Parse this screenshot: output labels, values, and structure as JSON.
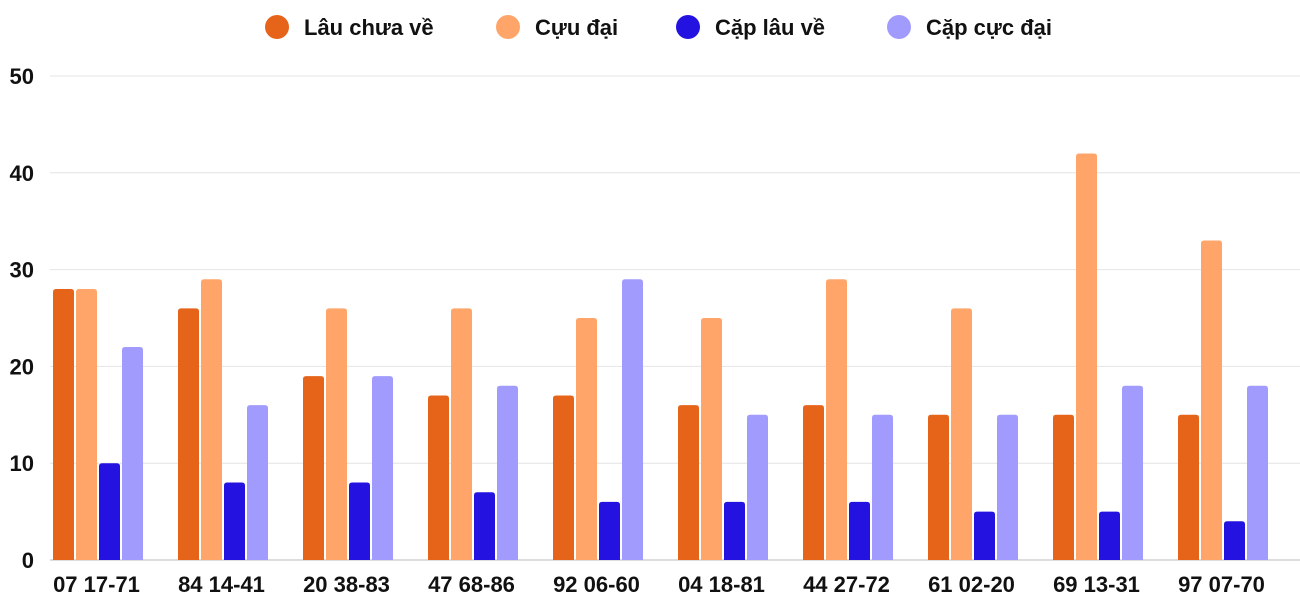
{
  "chart_data": {
    "type": "bar",
    "title": "",
    "xlabel": "",
    "ylabel": "",
    "ylim": [
      0,
      50
    ],
    "yticks": [
      0,
      10,
      20,
      30,
      40,
      50
    ],
    "grid": true,
    "legend_position": "top",
    "categories": [
      "07 17-71",
      "84 14-41",
      "20 38-83",
      "47 68-86",
      "92 06-60",
      "04 18-81",
      "44 27-72",
      "61 02-20",
      "69 13-31",
      "97 07-70"
    ],
    "series": [
      {
        "name": "Lâu chưa về",
        "color": "#E5641A",
        "values": [
          28,
          26,
          19,
          17,
          17,
          16,
          16,
          15,
          15,
          15
        ]
      },
      {
        "name": "Cựu đại",
        "color": "#FFA56A",
        "values": [
          28,
          29,
          26,
          26,
          25,
          25,
          29,
          26,
          42,
          33
        ]
      },
      {
        "name": "Cặp lâu về",
        "color": "#2412E0",
        "values": [
          10,
          8,
          8,
          7,
          6,
          6,
          6,
          5,
          5,
          4
        ]
      },
      {
        "name": "Cặp cực đại",
        "color": "#A29BFE",
        "values": [
          22,
          16,
          19,
          18,
          29,
          15,
          15,
          15,
          18,
          18
        ]
      }
    ]
  }
}
